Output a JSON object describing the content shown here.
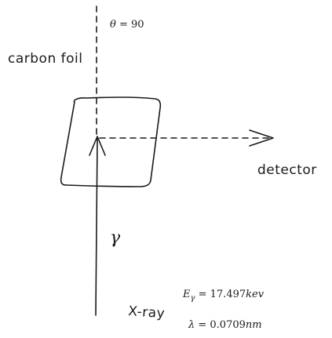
{
  "labels": {
    "theta_var": "θ",
    "theta_eq": " = 90",
    "carbon_foil": "carbon foil",
    "detector": "detector",
    "gamma": "γ",
    "xray": "X-ray",
    "energy_var": "E",
    "energy_sub": "γ",
    "energy_eq": " = 17.497",
    "energy_unit": "kev",
    "lambda_var": "λ",
    "lambda_eq": " = 0.0709",
    "lambda_unit": "nm"
  },
  "colors": {
    "ink": "#1a1a1a",
    "background": "#ffffff"
  }
}
